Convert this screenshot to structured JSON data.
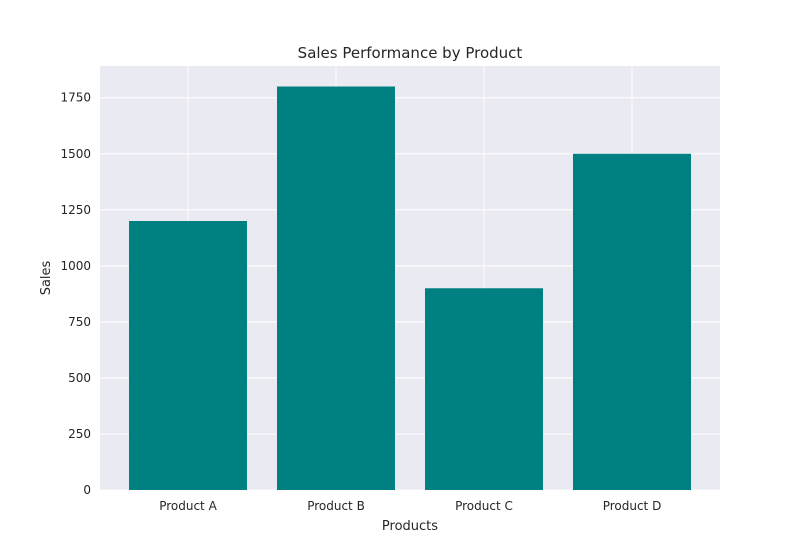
{
  "chart_data": {
    "type": "bar",
    "title": "Sales Performance by Product",
    "xlabel": "Products",
    "ylabel": "Sales",
    "categories": [
      "Product A",
      "Product B",
      "Product C",
      "Product D"
    ],
    "values": [
      1200,
      1800,
      900,
      1500
    ],
    "ylim": [
      0,
      1800
    ],
    "yticks": [
      0,
      250,
      500,
      750,
      1000,
      1250,
      1500,
      1750
    ],
    "bar_color": "#008080",
    "plot_background": "#eaeaf2",
    "grid": true,
    "legend": "none"
  }
}
